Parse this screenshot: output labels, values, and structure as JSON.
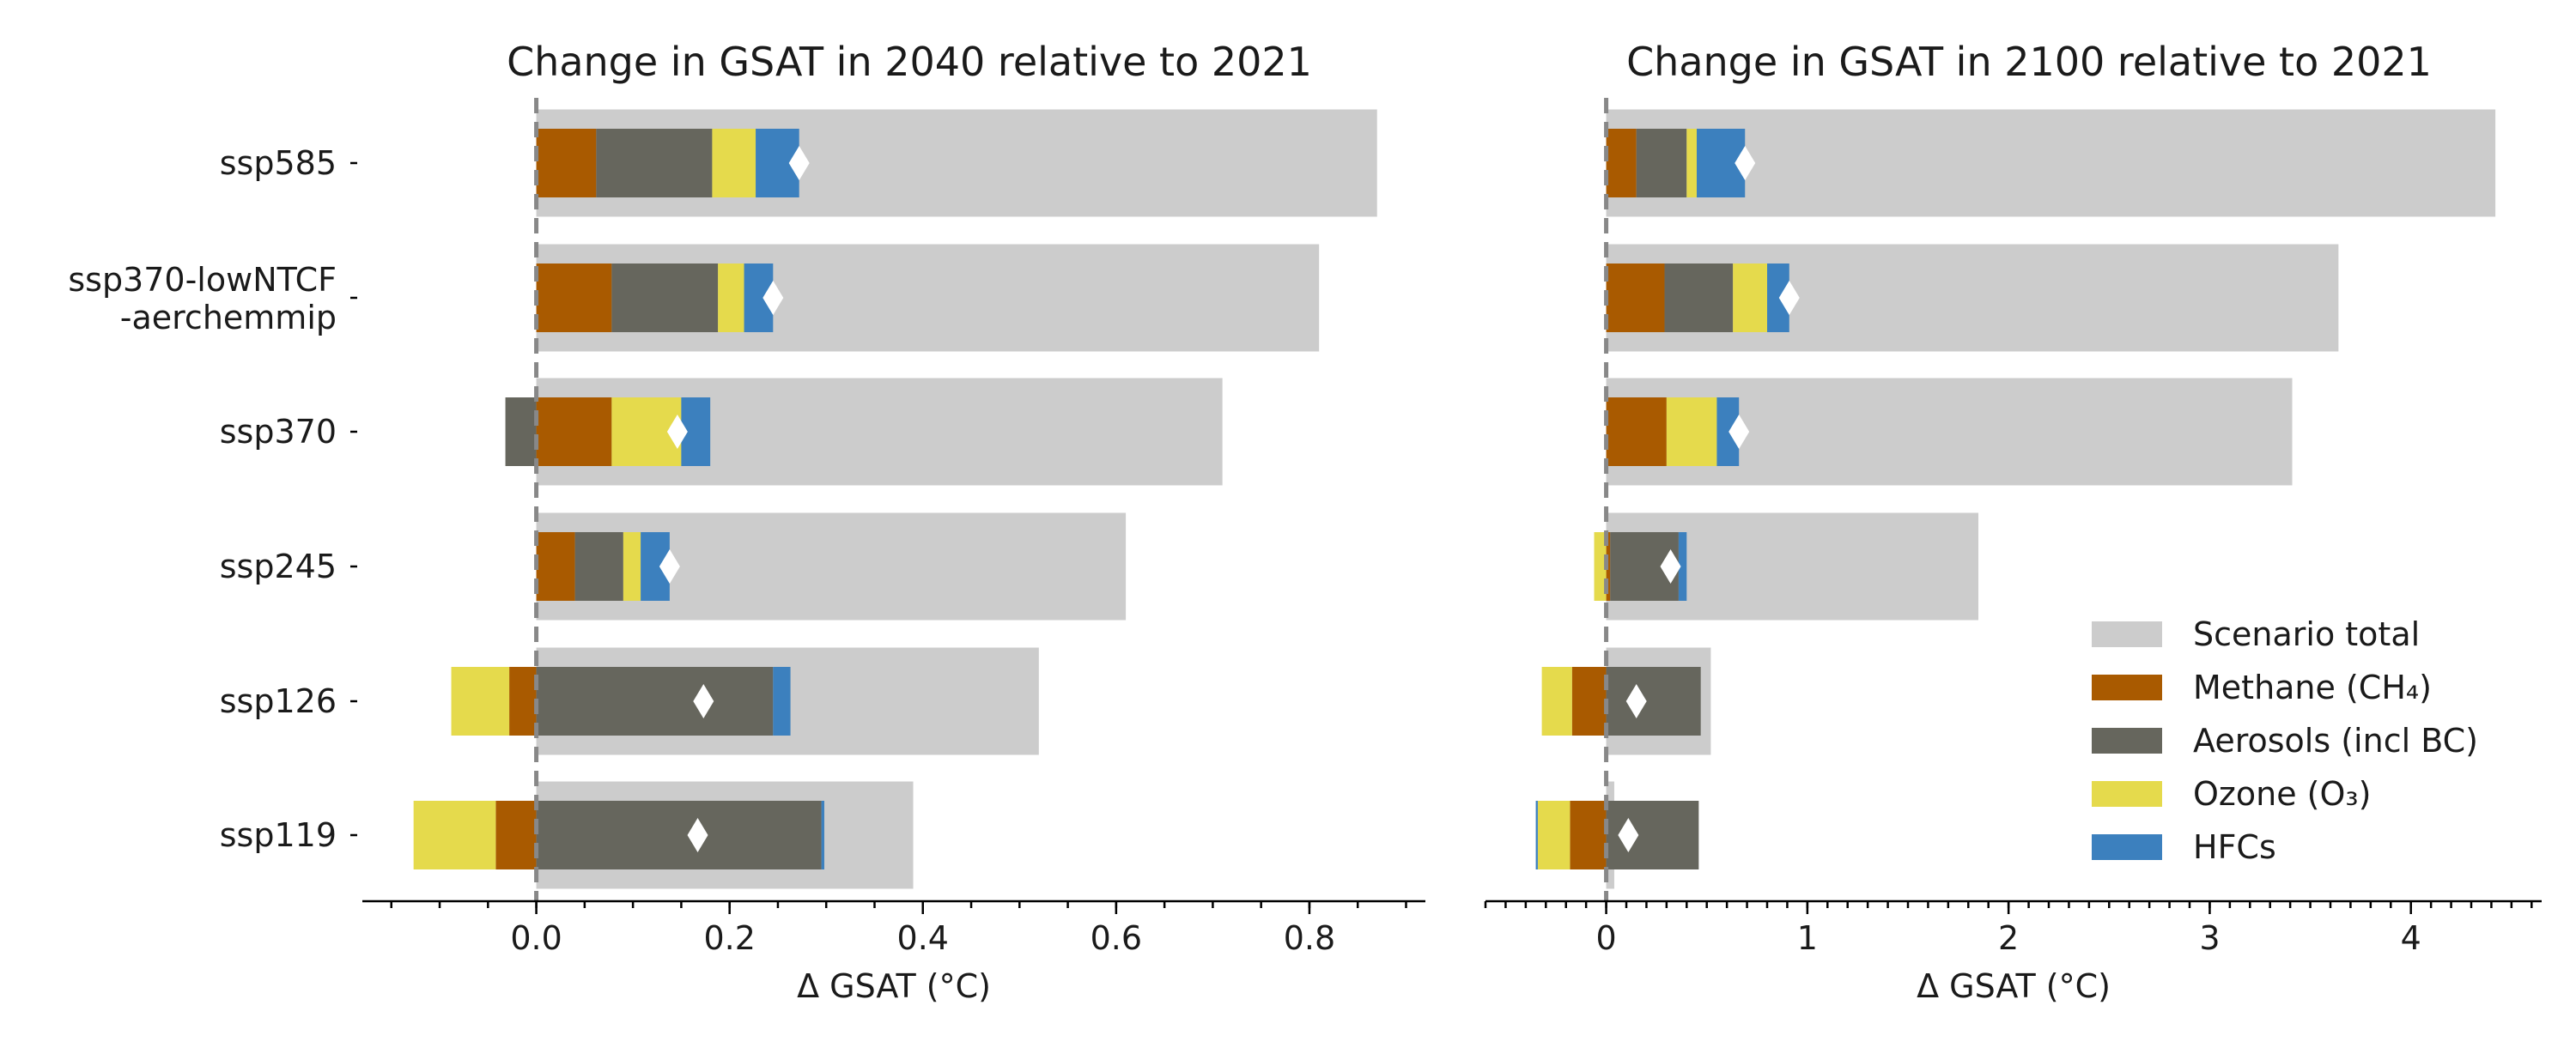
{
  "chart_data": [
    {
      "type": "bar",
      "orientation": "horizontal",
      "stacked": true,
      "title": "Change in GSAT in 2040 relative to 2021",
      "xlabel": "Δ GSAT (°C)",
      "xlim": [
        -0.18,
        0.92
      ],
      "xticks": [
        0.0,
        0.2,
        0.4,
        0.6,
        0.8
      ],
      "xtick_labels": [
        "0.0",
        "0.2",
        "0.4",
        "0.6",
        "0.8"
      ],
      "minor_tick_step": 0.05,
      "categories": [
        "ssp585",
        "ssp370-lowNTCF\n-aerchemmip",
        "ssp370",
        "ssp245",
        "ssp126",
        "ssp119"
      ],
      "scenario_total": [
        0.87,
        0.81,
        0.71,
        0.61,
        0.52,
        0.39
      ],
      "series": [
        {
          "name": "Methane (CH₄)",
          "values": [
            0.062,
            0.078,
            0.078,
            0.04,
            -0.028,
            -0.042
          ]
        },
        {
          "name": "Aerosols (incl BC)",
          "values": [
            0.12,
            0.11,
            -0.032,
            0.05,
            0.245,
            0.295
          ]
        },
        {
          "name": "Ozone (O₃)",
          "values": [
            0.045,
            0.027,
            0.072,
            0.018,
            -0.06,
            -0.085
          ]
        },
        {
          "name": "HFCs",
          "values": [
            0.045,
            0.03,
            0.03,
            0.03,
            0.018,
            0.003
          ]
        }
      ],
      "net": [
        0.272,
        0.245,
        0.146,
        0.138,
        0.173,
        0.167
      ],
      "grid": false
    },
    {
      "type": "bar",
      "orientation": "horizontal",
      "stacked": true,
      "title": "Change in GSAT in 2100 relative to 2021",
      "xlabel": "Δ GSAT (°C)",
      "xlim": [
        -0.6,
        4.65
      ],
      "xticks": [
        0,
        1,
        2,
        3,
        4
      ],
      "xtick_labels": [
        "0",
        "1",
        "2",
        "3",
        "4"
      ],
      "minor_tick_step": 0.1,
      "categories": [
        "ssp585",
        "ssp370-lowNTCF\n-aerchemmip",
        "ssp370",
        "ssp245",
        "ssp126",
        "ssp119"
      ],
      "scenario_total": [
        4.42,
        3.64,
        3.41,
        1.85,
        0.52,
        0.04
      ],
      "series": [
        {
          "name": "Methane (CH₄)",
          "values": [
            0.15,
            0.29,
            0.3,
            0.02,
            -0.17,
            -0.18
          ]
        },
        {
          "name": "Aerosols (incl BC)",
          "values": [
            0.25,
            0.34,
            0.0,
            0.34,
            0.47,
            0.46
          ]
        },
        {
          "name": "Ozone (O₃)",
          "values": [
            0.05,
            0.17,
            0.25,
            -0.06,
            -0.15,
            -0.16
          ]
        },
        {
          "name": "HFCs",
          "values": [
            0.24,
            0.11,
            0.11,
            0.04,
            0.0,
            -0.01
          ]
        }
      ],
      "net": [
        0.69,
        0.91,
        0.66,
        0.32,
        0.15,
        0.11
      ],
      "grid": false
    }
  ],
  "legend": {
    "placement": "lower-right",
    "items": [
      {
        "label": "Scenario total",
        "color": "#cccccc"
      },
      {
        "label": "Methane (CH₄)",
        "color": "#a95a00"
      },
      {
        "label": "Aerosols (incl BC)",
        "color": "#66665d"
      },
      {
        "label": "Ozone (O₃)",
        "color": "#e5da4c"
      },
      {
        "label": "HFCs",
        "color": "#3c80be"
      }
    ]
  },
  "colors": {
    "scenario_total": "#cccccc",
    "methane": "#a95a00",
    "aerosols": "#66665d",
    "ozone": "#e5da4c",
    "hfcs": "#3c80be",
    "net_marker": "#ffffff",
    "zero_line": "#888888"
  }
}
